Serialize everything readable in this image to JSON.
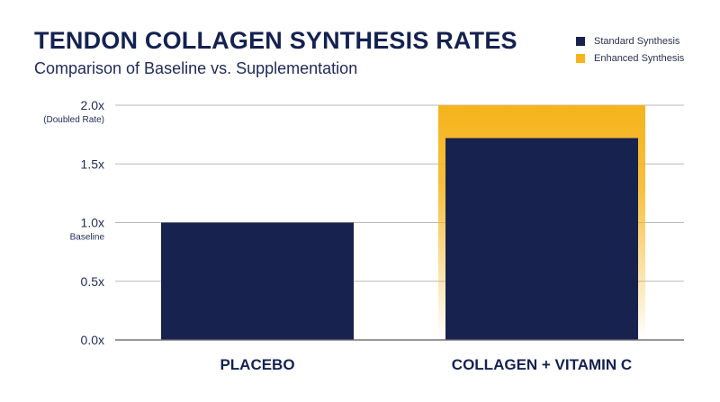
{
  "header": {
    "title": "TENDON COLLAGEN SYNTHESIS RATES",
    "subtitle": "Comparison of Baseline vs. Supplementation"
  },
  "legend": {
    "items": [
      {
        "label": "Standard Synthesis",
        "color": "#17224f"
      },
      {
        "label": "Enhanced Synthesis",
        "color": "#f5b41c"
      }
    ]
  },
  "chart_data": {
    "type": "bar",
    "categories": [
      "PLACEBO",
      "COLLAGEN + VITAMIN C"
    ],
    "series": [
      {
        "name": "Standard Synthesis",
        "values": [
          1.0,
          1.72
        ],
        "color": "#17224f"
      },
      {
        "name": "Enhanced Synthesis",
        "values": [
          null,
          2.0
        ],
        "color": "#f5b41c"
      }
    ],
    "ylim": [
      0,
      2.0
    ],
    "yticks": [
      {
        "value": 0.0,
        "label": "0.0x",
        "sublabel": ""
      },
      {
        "value": 0.5,
        "label": "0.5x",
        "sublabel": ""
      },
      {
        "value": 1.0,
        "label": "1.0x",
        "sublabel": "Baseline"
      },
      {
        "value": 1.5,
        "label": "1.5x",
        "sublabel": ""
      },
      {
        "value": 2.0,
        "label": "2.0x",
        "sublabel": "(Doubled Rate)"
      }
    ],
    "grid": true,
    "legend_position": "top-right"
  }
}
